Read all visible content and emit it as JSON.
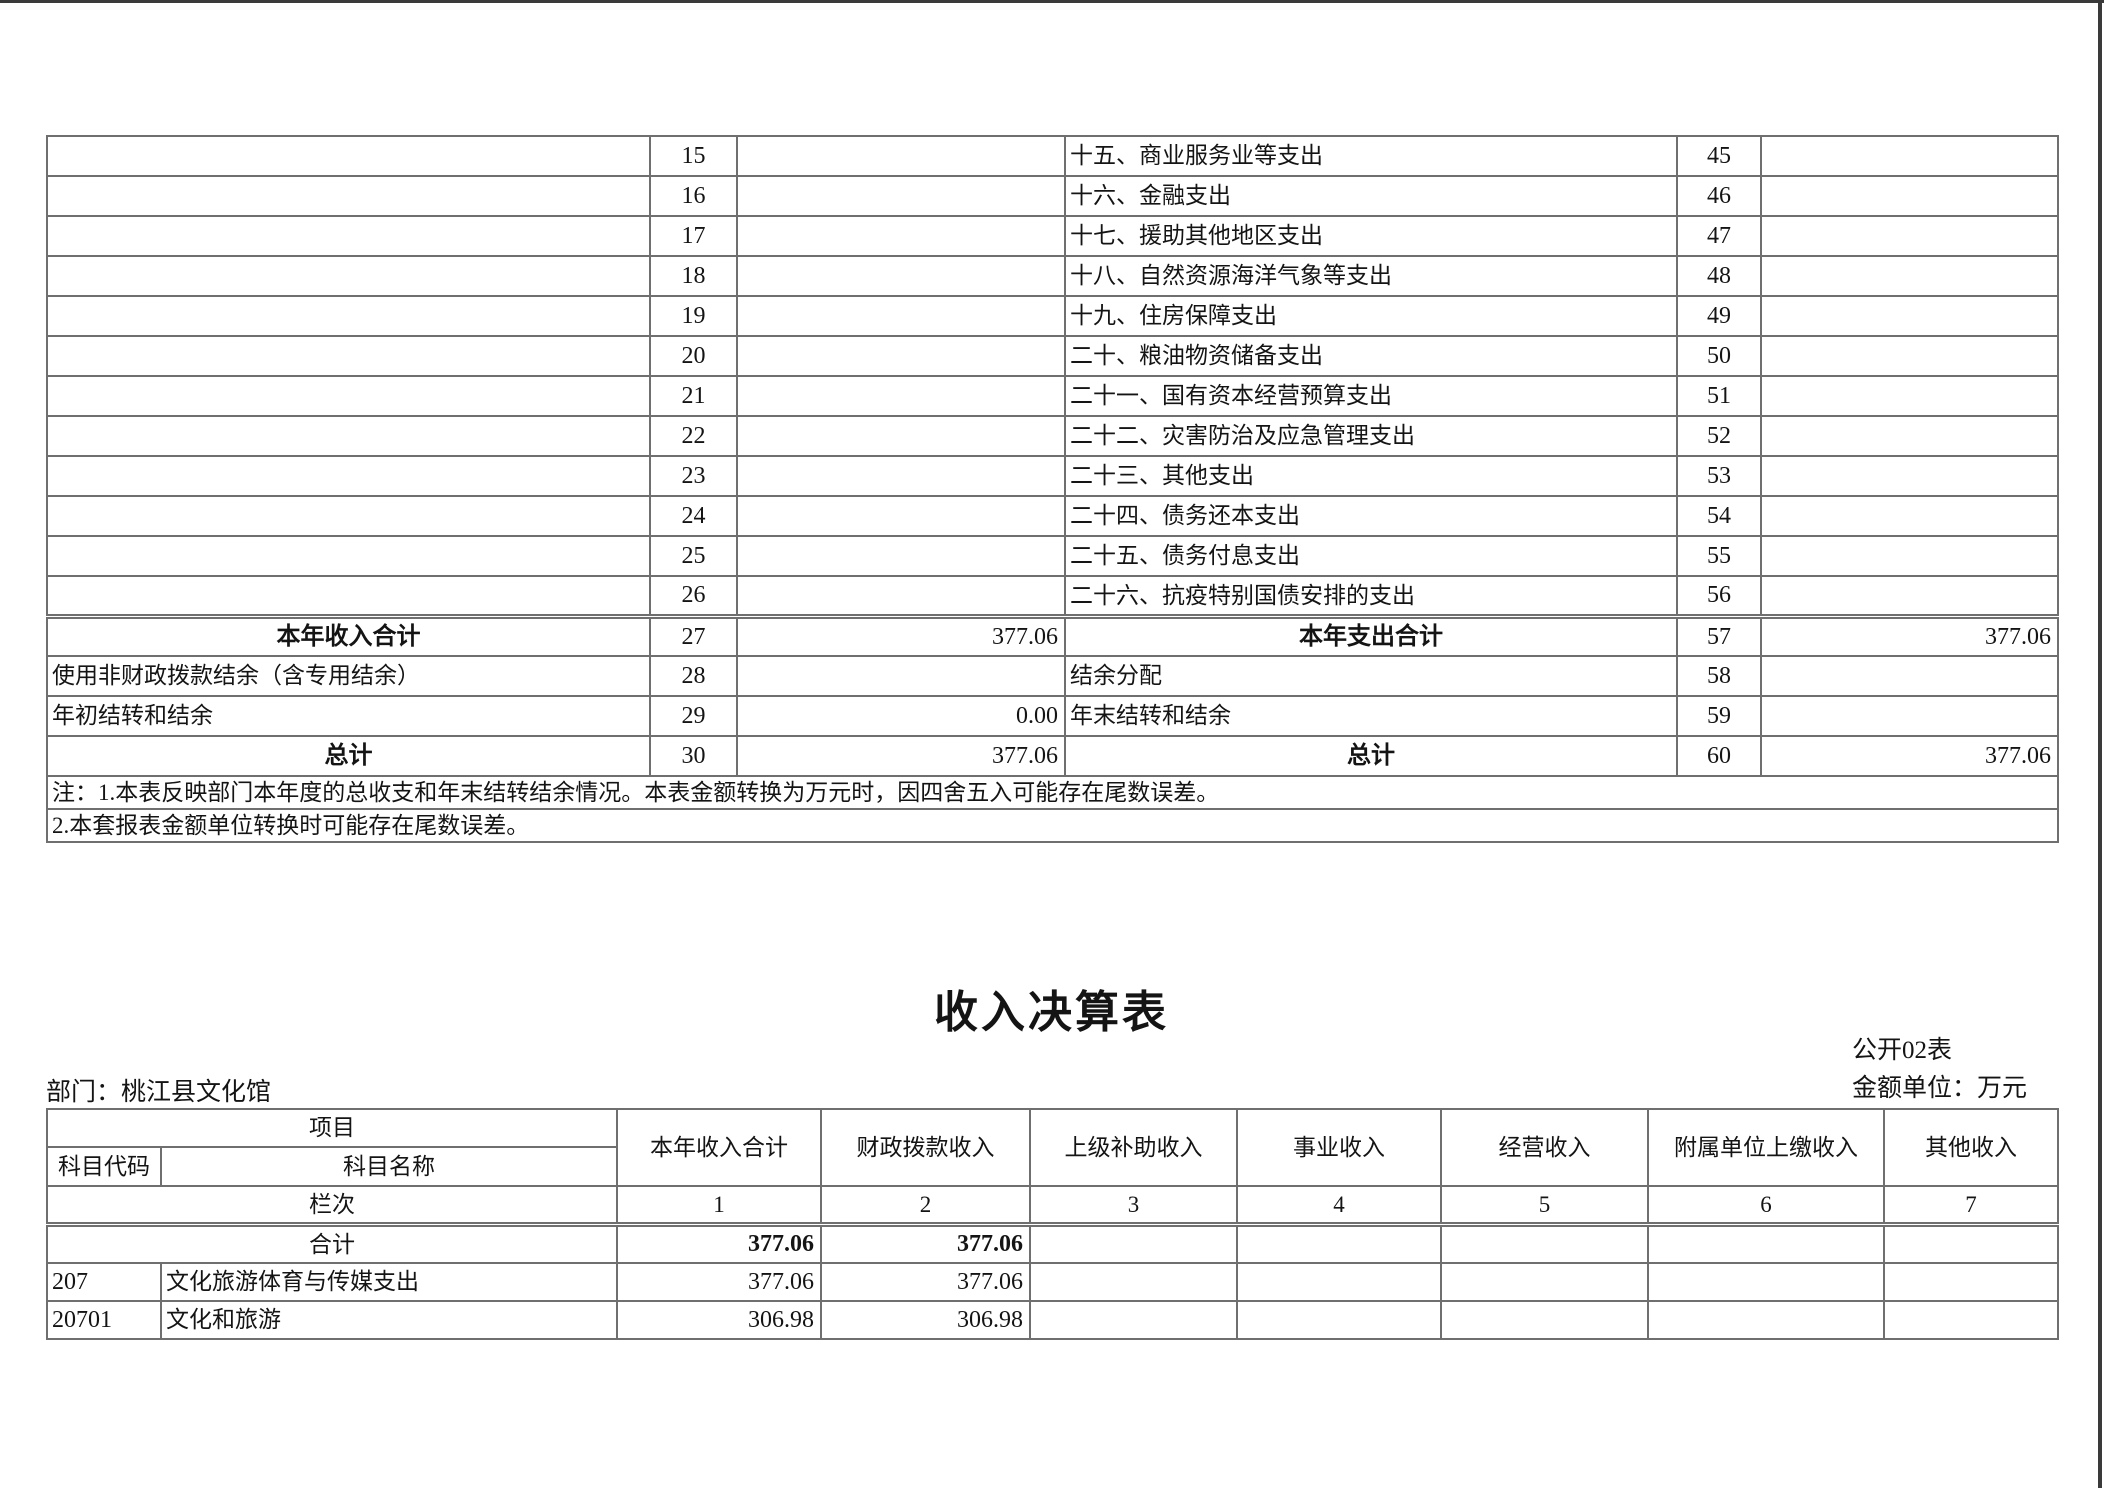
{
  "colors": {
    "cell_border": "#6f6f6f",
    "page_edge_line": "#3a3a3a"
  },
  "table1": {
    "rows": [
      {
        "l_label": "",
        "l_no": "15",
        "l_val": "",
        "r_label": "十五、商业服务业等支出",
        "r_no": "45",
        "r_val": ""
      },
      {
        "l_label": "",
        "l_no": "16",
        "l_val": "",
        "r_label": "十六、金融支出",
        "r_no": "46",
        "r_val": ""
      },
      {
        "l_label": "",
        "l_no": "17",
        "l_val": "",
        "r_label": "十七、援助其他地区支出",
        "r_no": "47",
        "r_val": ""
      },
      {
        "l_label": "",
        "l_no": "18",
        "l_val": "",
        "r_label": "十八、自然资源海洋气象等支出",
        "r_no": "48",
        "r_val": ""
      },
      {
        "l_label": "",
        "l_no": "19",
        "l_val": "",
        "r_label": "十九、住房保障支出",
        "r_no": "49",
        "r_val": ""
      },
      {
        "l_label": "",
        "l_no": "20",
        "l_val": "",
        "r_label": "二十、粮油物资储备支出",
        "r_no": "50",
        "r_val": ""
      },
      {
        "l_label": "",
        "l_no": "21",
        "l_val": "",
        "r_label": "二十一、国有资本经营预算支出",
        "r_no": "51",
        "r_val": ""
      },
      {
        "l_label": "",
        "l_no": "22",
        "l_val": "",
        "r_label": "二十二、灾害防治及应急管理支出",
        "r_no": "52",
        "r_val": ""
      },
      {
        "l_label": "",
        "l_no": "23",
        "l_val": "",
        "r_label": "二十三、其他支出",
        "r_no": "53",
        "r_val": ""
      },
      {
        "l_label": "",
        "l_no": "24",
        "l_val": "",
        "r_label": "二十四、债务还本支出",
        "r_no": "54",
        "r_val": ""
      },
      {
        "l_label": "",
        "l_no": "25",
        "l_val": "",
        "r_label": "二十五、债务付息支出",
        "r_no": "55",
        "r_val": ""
      },
      {
        "l_label": "",
        "l_no": "26",
        "l_val": "",
        "r_label": "二十六、抗疫特别国债安排的支出",
        "r_no": "56",
        "r_val": ""
      }
    ],
    "summary": [
      {
        "total_row": true,
        "l_label": "本年收入合计",
        "l_no": "27",
        "l_val": "377.06",
        "r_label": "本年支出合计",
        "r_no": "57",
        "r_val": "377.06"
      },
      {
        "total_row": false,
        "l_label": "使用非财政拨款结余（含专用结余）",
        "l_no": "28",
        "l_val": "",
        "r_label": "结余分配",
        "r_no": "58",
        "r_val": ""
      },
      {
        "total_row": false,
        "l_label": "年初结转和结余",
        "l_no": "29",
        "l_val": "0.00",
        "r_label": "年末结转和结余",
        "r_no": "59",
        "r_val": ""
      },
      {
        "total_row": true,
        "l_label": "总计",
        "l_no": "30",
        "l_val": "377.06",
        "r_label": "总计",
        "r_no": "60",
        "r_val": "377.06"
      }
    ],
    "notes": [
      "注：1.本表反映部门本年度的总收支和年末结转结余情况。本表金额转换为万元时，因四舍五入可能存在尾数误差。",
      "2.本套报表金额单位转换时可能存在尾数误差。"
    ]
  },
  "table2": {
    "title": "收入决算表",
    "doc_label": "公开02表",
    "department": "部门：桃江县文化馆",
    "unit": "金额单位：万元",
    "header": {
      "project": "项目",
      "code": "科目代码",
      "name": "科目名称",
      "columns": [
        "本年收入合计",
        "财政拨款收入",
        "上级补助收入",
        "事业收入",
        "经营收入",
        "附属单位上缴收入",
        "其他收入"
      ],
      "lanci": "栏次",
      "col_nums": [
        "1",
        "2",
        "3",
        "4",
        "5",
        "6",
        "7"
      ]
    },
    "rows": [
      {
        "is_total": true,
        "code": "",
        "name": "合计",
        "values": [
          "377.06",
          "377.06",
          "",
          "",
          "",
          "",
          ""
        ]
      },
      {
        "is_total": false,
        "code": "207",
        "name": "文化旅游体育与传媒支出",
        "values": [
          "377.06",
          "377.06",
          "",
          "",
          "",
          "",
          ""
        ]
      },
      {
        "is_total": false,
        "code": "20701",
        "name": "文化和旅游",
        "values": [
          "306.98",
          "306.98",
          "",
          "",
          "",
          "",
          ""
        ]
      }
    ]
  }
}
